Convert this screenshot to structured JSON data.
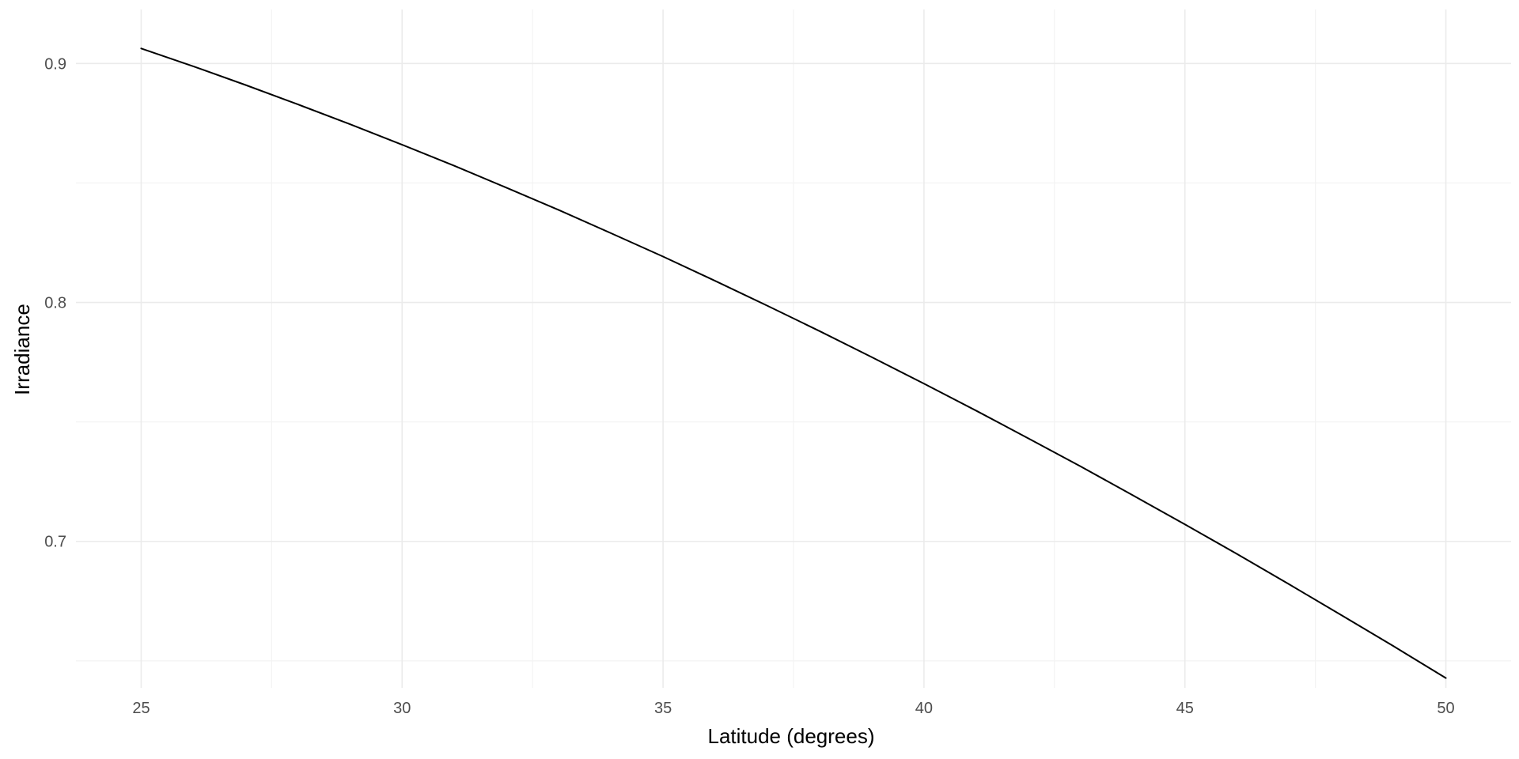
{
  "chart_data": {
    "type": "line",
    "title": "",
    "xlabel": "Latitude (degrees)",
    "ylabel": "Irradiance",
    "xlim": [
      23.75,
      51.25
    ],
    "ylim": [
      0.6387,
      0.9226
    ],
    "x_ticks": [
      25,
      30,
      35,
      40,
      45,
      50
    ],
    "x_tick_labels": [
      "25",
      "30",
      "35",
      "40",
      "45",
      "50"
    ],
    "x_minor_ticks": [
      27.5,
      32.5,
      37.5,
      42.5,
      47.5
    ],
    "y_ticks": [
      0.7,
      0.8,
      0.9
    ],
    "y_tick_labels": [
      "0.7",
      "0.8",
      "0.9"
    ],
    "y_minor_ticks": [
      0.65,
      0.75,
      0.85
    ],
    "grid": true,
    "series": [
      {
        "color": "#000000",
        "x": [
          25,
          26,
          27,
          28,
          29,
          30,
          31,
          32,
          33,
          34,
          35,
          36,
          37,
          38,
          39,
          40,
          41,
          42,
          43,
          44,
          45,
          46,
          47,
          48,
          49,
          50
        ],
        "y": [
          0.9063,
          0.8988,
          0.891,
          0.8829,
          0.8746,
          0.866,
          0.8572,
          0.848,
          0.8387,
          0.829,
          0.8192,
          0.809,
          0.7986,
          0.788,
          0.7771,
          0.766,
          0.7547,
          0.7431,
          0.7314,
          0.7193,
          0.7071,
          0.6947,
          0.682,
          0.6691,
          0.6561,
          0.6428
        ]
      }
    ]
  }
}
